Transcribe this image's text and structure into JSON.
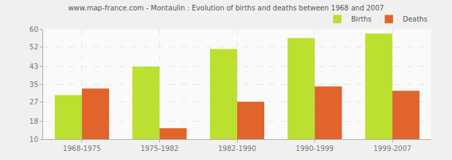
{
  "chart_data": {
    "type": "bar",
    "title": "www.map-france.com - Montaulin : Evolution of births and deaths between 1968 and 2007",
    "categories": [
      "1968-1975",
      "1975-1982",
      "1982-1990",
      "1990-1999",
      "1999-2007"
    ],
    "series": [
      {
        "name": "Births",
        "color": "#bbe02f",
        "values": [
          30,
          43,
          51,
          56,
          58
        ]
      },
      {
        "name": "Deaths",
        "color": "#e0642c",
        "values": [
          33,
          15,
          27,
          34,
          32
        ]
      }
    ],
    "ylim": [
      10,
      60
    ],
    "yticks": [
      10,
      18,
      27,
      35,
      43,
      52,
      60
    ],
    "grid": true,
    "legend": "top right"
  }
}
